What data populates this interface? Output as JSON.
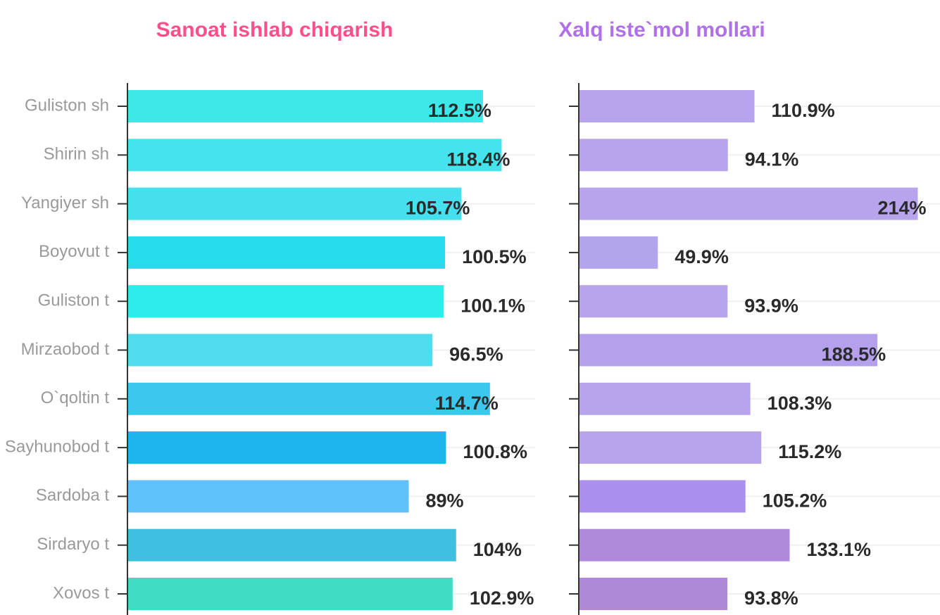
{
  "chart_data": [
    {
      "type": "hbar",
      "title": "Sanoat ishlab chiqarish",
      "title_color": "#ff4f8b",
      "categories": [
        "Guliston sh",
        "Shirin sh",
        "Yangiyer sh",
        "Boyovut t",
        "Guliston t",
        "Mirzaobod t",
        "O`qoltin t",
        "Sayhunobod t",
        "Sardoba t",
        "Sirdaryo t",
        "Xovos t"
      ],
      "values": [
        112.5,
        118.4,
        105.7,
        100.5,
        100.1,
        96.5,
        114.7,
        100.8,
        89,
        104,
        102.9
      ],
      "value_labels": [
        "112.5%",
        "118.4%",
        "105.7%",
        "100.5%",
        "100.1%",
        "96.5%",
        "114.7%",
        "100.8%",
        "89%",
        "104%",
        "102.9%"
      ],
      "colors": [
        "#3ce8e8",
        "#45e4ec",
        "#45e0ee",
        "#27dcec",
        "#2eecea",
        "#50dcee",
        "#3cc8ec",
        "#1eb4ec",
        "#60c0fc",
        "#40c0e0",
        "#40dcc4"
      ],
      "xlim": [
        0,
        129
      ],
      "grid": true
    },
    {
      "type": "hbar",
      "title": "Xalq iste`mol mollari",
      "title_color": "#b070e8",
      "values": [
        110.9,
        94.1,
        214,
        49.9,
        93.9,
        188.5,
        108.3,
        115.2,
        105.2,
        133.1,
        93.8
      ],
      "value_labels": [
        "110.9%",
        "94.1%",
        "214%",
        "49.9%",
        "93.9%",
        "188.5%",
        "108.3%",
        "115.2%",
        "105.2%",
        "133.1%",
        "93.8%"
      ],
      "colors": [
        "#b8a4ec",
        "#b8a4ec",
        "#b8a4ec",
        "#b4a4ec",
        "#b8a4ec",
        "#b4a0ec",
        "#b8a4ec",
        "#b8a4ec",
        "#a890ec",
        "#b088dc",
        "#b088d8"
      ],
      "xlim": [
        0,
        228
      ],
      "grid": true
    }
  ]
}
